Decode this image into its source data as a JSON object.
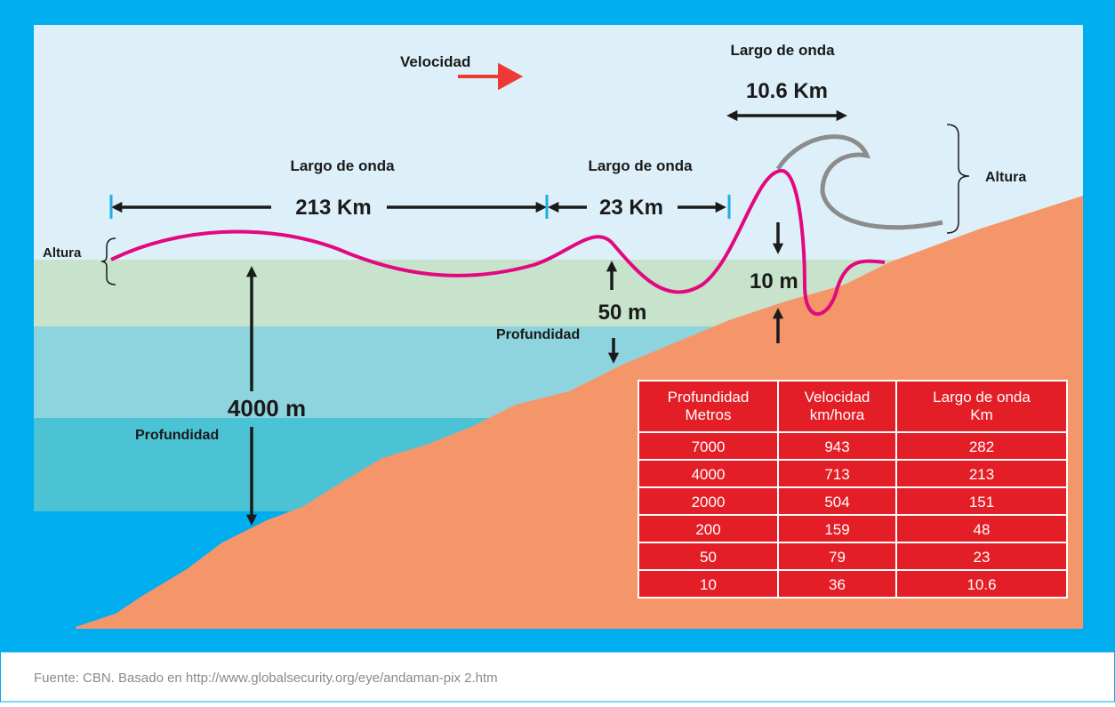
{
  "velocity": "Velocidad",
  "wavelength_long": {
    "label": "Largo de onda",
    "value": "213 Km"
  },
  "wavelength_mid": {
    "label": "Largo de onda",
    "value": "23 Km"
  },
  "wavelength_short": {
    "label": "Largo de onda",
    "value": "10.6 Km"
  },
  "height_left": "Altura",
  "height_right": "Altura",
  "depth_deep": {
    "value": "4000 m",
    "label": "Profundidad"
  },
  "depth_mid": {
    "value": "50 m",
    "label": "Profundidad"
  },
  "depth_shallow": {
    "value": "10 m"
  },
  "table": {
    "headers": [
      [
        "Profundidad",
        "Metros"
      ],
      [
        "Velocidad",
        "km/hora"
      ],
      [
        "Largo de onda",
        "Km"
      ]
    ],
    "rows": [
      [
        7000,
        943,
        282
      ],
      [
        4000,
        713,
        213
      ],
      [
        2000,
        504,
        151
      ],
      [
        200,
        159,
        48
      ],
      [
        50,
        79,
        23
      ],
      [
        10,
        36,
        10.6
      ]
    ]
  },
  "source": "Fuente: CBN. Basado en http://www.globalsecurity.org/eye/andaman-pix 2.htm"
}
